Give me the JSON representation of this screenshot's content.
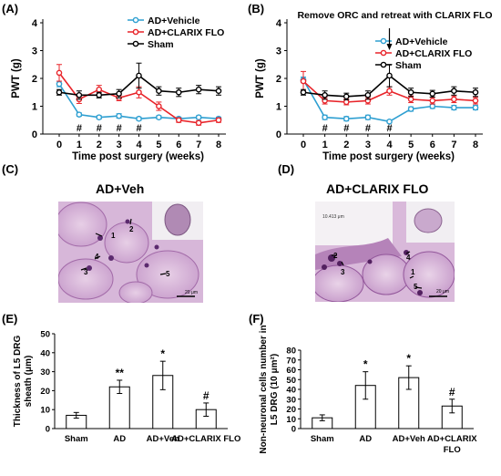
{
  "panel_letters": {
    "a": "(A)",
    "b": "(B)",
    "c": "(C)",
    "d": "(D)",
    "e": "(E)",
    "f": "(F)"
  },
  "colors": {
    "vehicle": "#2e9fd1",
    "clarix": "#e8242a",
    "sham": "#000000"
  },
  "histology": {
    "c": {
      "title": "AD+Veh",
      "scale_label": "20 μm",
      "arrows": [
        "1",
        "2",
        "3",
        "4",
        "5"
      ]
    },
    "d": {
      "title": "AD+CLARIX FLO",
      "inset_label": "10.413 μm",
      "scale_label": "20 μm",
      "arrows": [
        "1",
        "2",
        "3",
        "4",
        "5"
      ]
    }
  },
  "chart_data": [
    {
      "id": "A",
      "type": "line",
      "xlabel": "Time post surgery (weeks)",
      "ylabel": "PWT (g)",
      "x": [
        0,
        1,
        2,
        3,
        4,
        5,
        6,
        7,
        8
      ],
      "ylim": [
        0,
        4
      ],
      "yticks": [
        0,
        1,
        2,
        3,
        4
      ],
      "legend_position": "top-right",
      "series": [
        {
          "name": "AD+Vehicle",
          "color": "#2e9fd1",
          "values": [
            1.8,
            0.7,
            0.6,
            0.65,
            0.55,
            0.6,
            0.55,
            0.6,
            0.55
          ],
          "errors": [
            0.1,
            0.06,
            0.06,
            0.08,
            0.06,
            0.06,
            0.06,
            0.06,
            0.06
          ]
        },
        {
          "name": "AD+CLARIX FLO",
          "color": "#e8242a",
          "values": [
            2.2,
            1.25,
            1.6,
            1.3,
            1.5,
            1.0,
            0.5,
            0.4,
            0.5
          ],
          "errors": [
            0.3,
            0.15,
            0.15,
            0.1,
            0.2,
            0.15,
            0.08,
            0.08,
            0.08
          ]
        },
        {
          "name": "Sham",
          "color": "#000000",
          "values": [
            1.5,
            1.4,
            1.4,
            1.45,
            2.1,
            1.55,
            1.5,
            1.6,
            1.55
          ],
          "errors": [
            0.1,
            0.15,
            0.1,
            0.15,
            0.45,
            0.15,
            0.15,
            0.15,
            0.15
          ]
        }
      ],
      "annotations": [
        {
          "x": 1,
          "text": "#"
        },
        {
          "x": 2,
          "text": "#"
        },
        {
          "x": 3,
          "text": "#"
        },
        {
          "x": 4,
          "text": "#"
        }
      ]
    },
    {
      "id": "B",
      "type": "line",
      "title": "Remove ORC and retreat with CLARIX FLO",
      "arrow_at_x": 4,
      "xlabel": "Time post surgery (weeks)",
      "ylabel": "PWT (g)",
      "x": [
        0,
        1,
        2,
        3,
        4,
        5,
        6,
        7,
        8
      ],
      "ylim": [
        0,
        4
      ],
      "yticks": [
        0,
        1,
        2,
        3,
        4
      ],
      "legend_position": "top-right",
      "series": [
        {
          "name": "AD+Vehicle",
          "color": "#2e9fd1",
          "values": [
            1.95,
            0.6,
            0.55,
            0.6,
            0.45,
            0.9,
            1.0,
            0.95,
            0.95
          ],
          "errors": [
            0.1,
            0.08,
            0.08,
            0.08,
            0.05,
            0.08,
            0.08,
            0.08,
            0.08
          ]
        },
        {
          "name": "AD+CLARIX FLO",
          "color": "#e8242a",
          "values": [
            1.9,
            1.2,
            1.15,
            1.2,
            1.55,
            1.25,
            1.2,
            1.25,
            1.2
          ],
          "errors": [
            0.35,
            0.12,
            0.1,
            0.12,
            0.15,
            0.12,
            0.12,
            0.12,
            0.12
          ]
        },
        {
          "name": "Sham",
          "color": "#000000",
          "values": [
            1.5,
            1.4,
            1.35,
            1.4,
            2.1,
            1.5,
            1.45,
            1.55,
            1.5
          ],
          "errors": [
            0.1,
            0.15,
            0.12,
            0.15,
            0.4,
            0.15,
            0.12,
            0.15,
            0.15
          ]
        }
      ],
      "annotations": [
        {
          "x": 1,
          "text": "#"
        },
        {
          "x": 2,
          "text": "#"
        },
        {
          "x": 3,
          "text": "#"
        },
        {
          "x": 4,
          "text": "#"
        }
      ]
    },
    {
      "id": "E",
      "type": "bar",
      "categories": [
        "Sham",
        "AD",
        "AD+Veh",
        "AD+CLARIX FLO"
      ],
      "values": [
        7,
        22,
        28,
        10
      ],
      "errors": [
        1.5,
        3.5,
        7.5,
        3.5
      ],
      "annotations": [
        "",
        "**",
        "*",
        "#"
      ],
      "ylabel": "Thickness of L5 DRG sheath (μm)",
      "ylim": [
        0,
        50
      ],
      "yticks": [
        0,
        10,
        20,
        30,
        40,
        50
      ]
    },
    {
      "id": "F",
      "type": "bar",
      "categories": [
        "Sham",
        "AD",
        "AD+Veh",
        "AD+CLARIX FLO"
      ],
      "values": [
        11,
        44,
        52,
        23
      ],
      "errors": [
        3,
        14,
        12,
        7
      ],
      "annotations": [
        "",
        "*",
        "*",
        "#"
      ],
      "ylabel": "Non-neuronal cells number in L5 DRG (10 μm²)",
      "ylim": [
        0,
        80
      ],
      "yticks": [
        0,
        10,
        20,
        30,
        40,
        50,
        60,
        70,
        80
      ]
    }
  ]
}
